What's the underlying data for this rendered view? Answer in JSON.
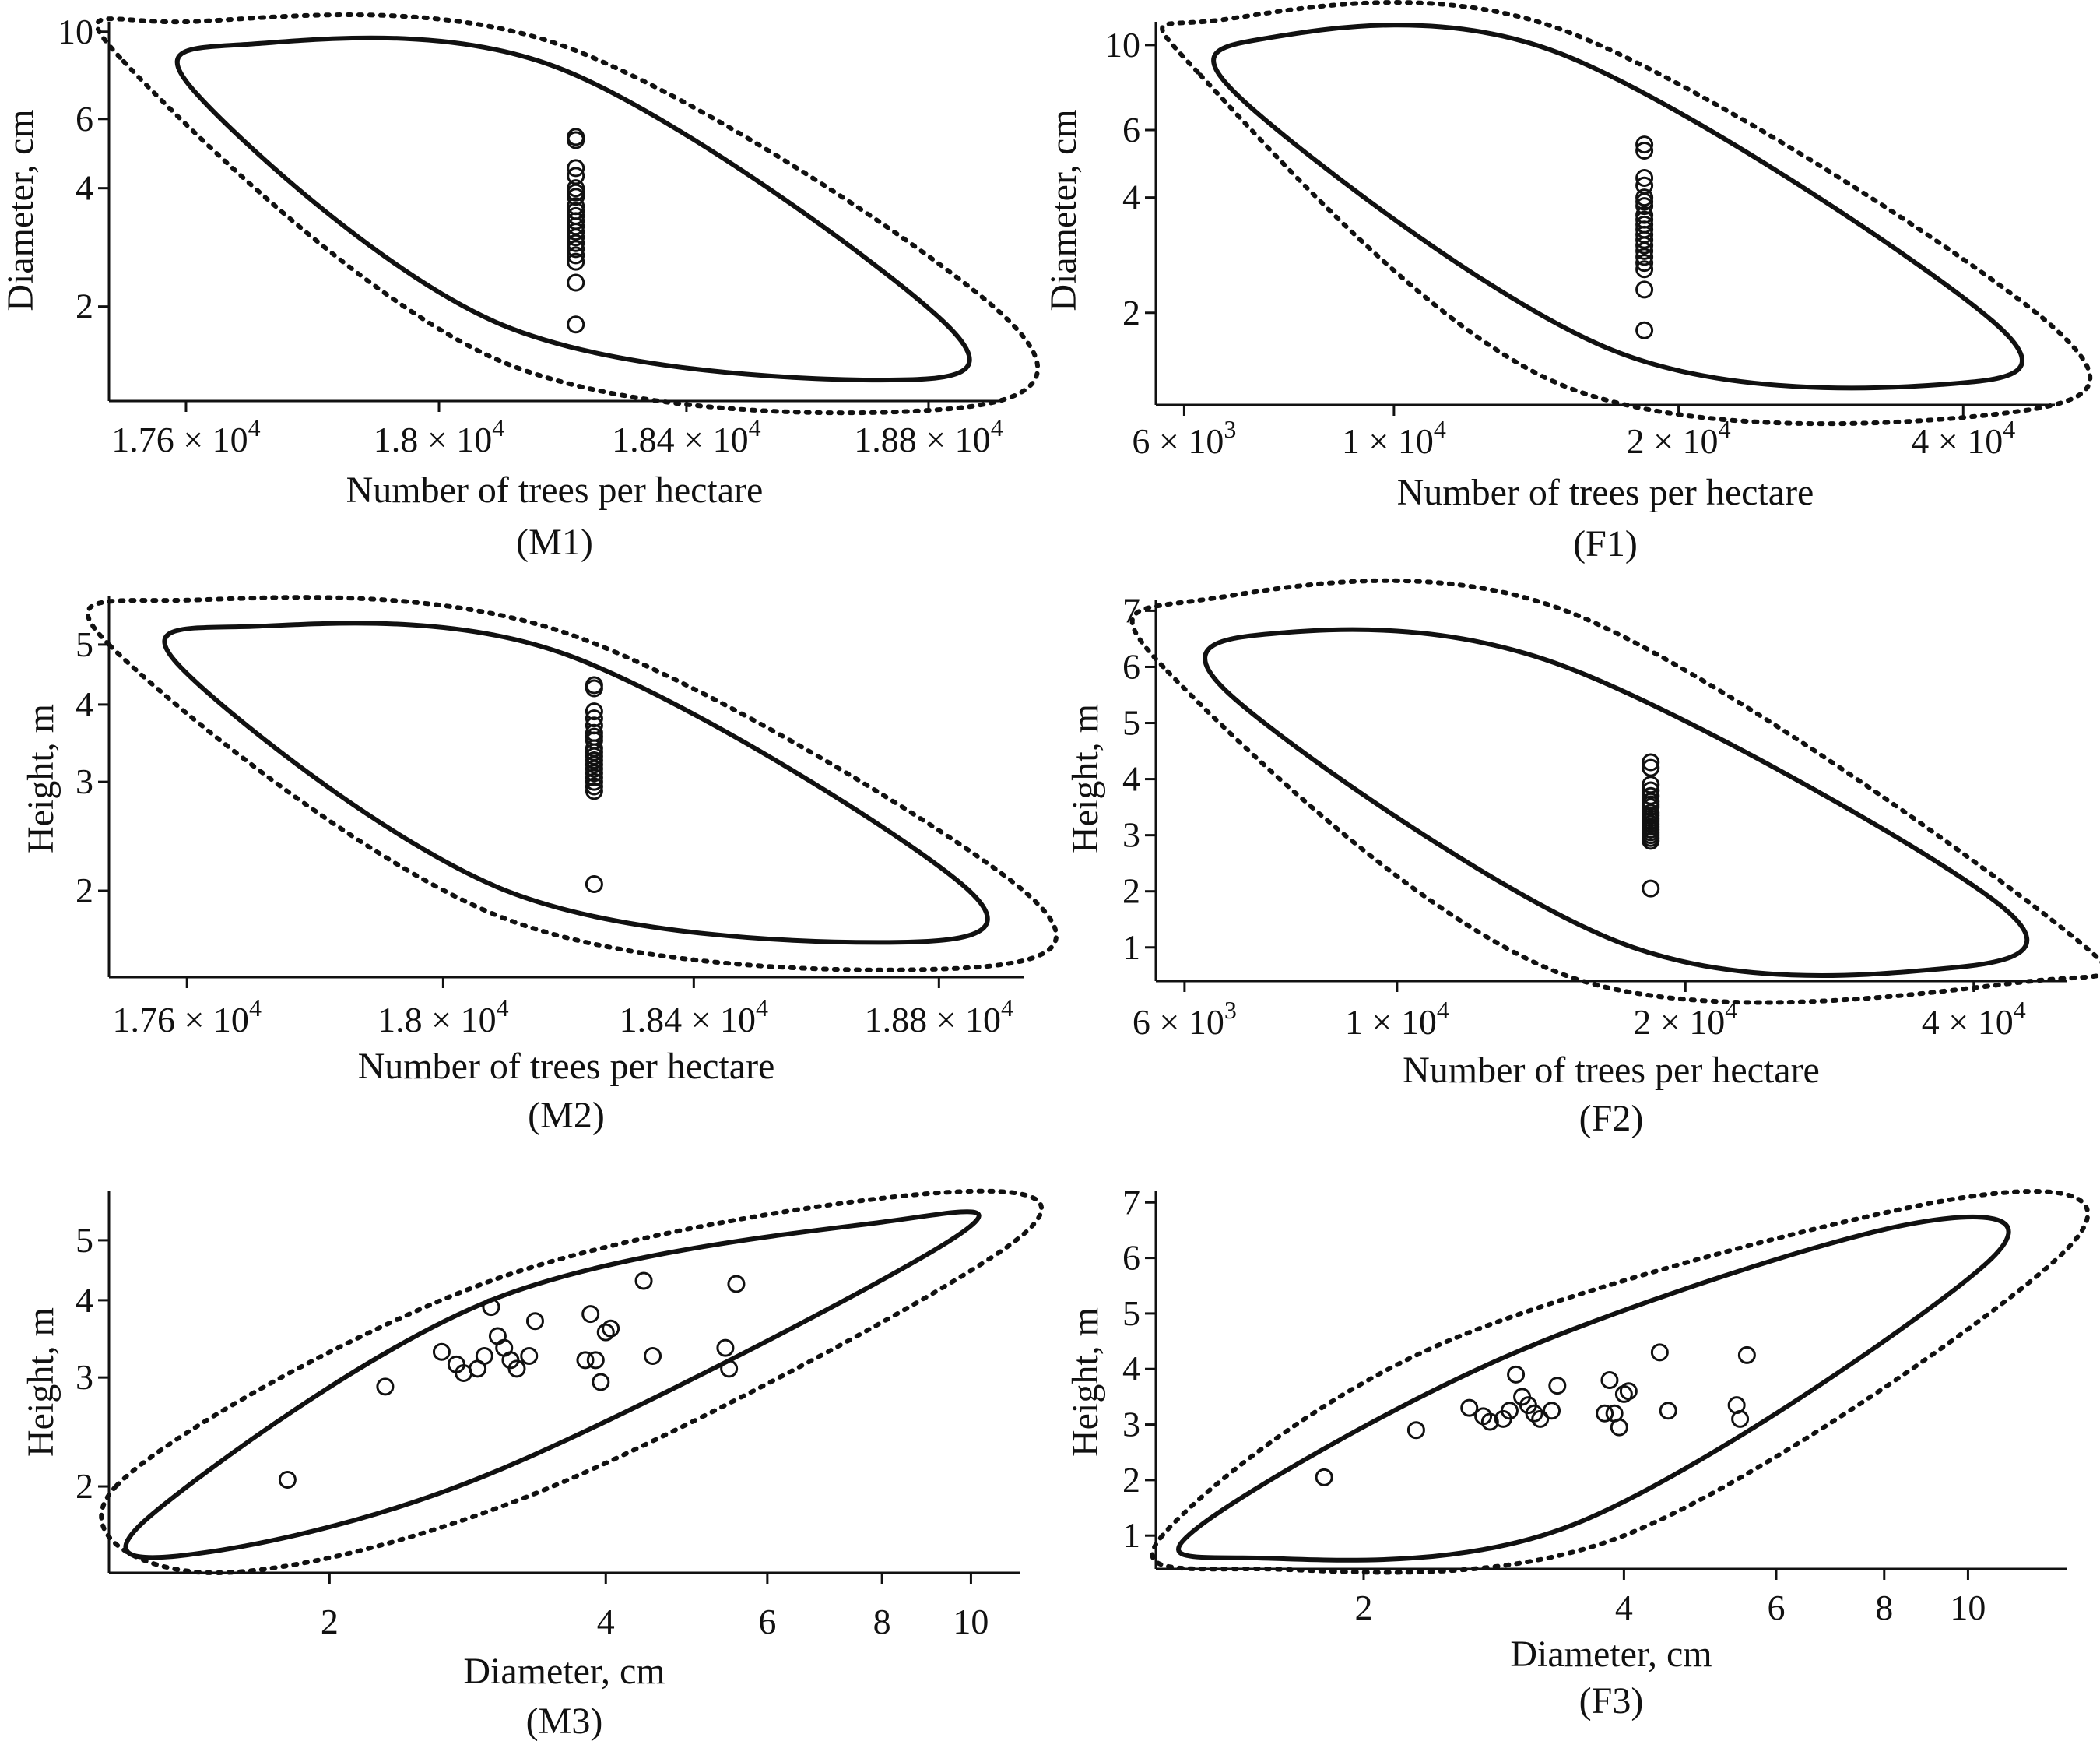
{
  "figure": {
    "style": {
      "ink": "#111111",
      "background": "#ffffff",
      "marker": "open-circle"
    }
  },
  "chart_data": [
    {
      "id": "M1",
      "panel_label": "(M1)",
      "type": "scatter",
      "x_scale": "log",
      "y_scale": "log",
      "title": "",
      "xlabel": "Number of trees per hectare",
      "ylabel": "Diameter, cm",
      "xlim": [
        17480,
        18920
      ],
      "ylim": [
        1.15,
        10.6
      ],
      "x_ticks": [
        {
          "v": 17600,
          "m": "1.76",
          "e": "4"
        },
        {
          "v": 18000,
          "m": "1.8",
          "e": "4"
        },
        {
          "v": 18400,
          "m": "1.84",
          "e": "4"
        },
        {
          "v": 18800,
          "m": "1.88",
          "e": "4"
        }
      ],
      "y_ticks": [
        {
          "v": 2,
          "t": "2"
        },
        {
          "v": 4,
          "t": "4"
        },
        {
          "v": 6,
          "t": "6"
        },
        {
          "v": 10,
          "t": "10"
        }
      ],
      "ellipse_inner": [
        {
          "x": 17615,
          "y": 7.0
        },
        {
          "x": 17700,
          "y": 9.3
        },
        {
          "x": 18200,
          "y": 8.0
        },
        {
          "x": 18830,
          "y": 1.8
        },
        {
          "x": 18720,
          "y": 1.3
        },
        {
          "x": 18100,
          "y": 1.8
        }
      ],
      "ellipse_outer": [
        {
          "x": 17497,
          "y": 8.6
        },
        {
          "x": 17600,
          "y": 10.6
        },
        {
          "x": 18200,
          "y": 9.2
        },
        {
          "x": 18925,
          "y": 1.9
        },
        {
          "x": 18840,
          "y": 1.1
        },
        {
          "x": 18100,
          "y": 1.45
        }
      ],
      "points": [
        {
          "x": 18220,
          "y": 5.4
        },
        {
          "x": 18220,
          "y": 5.3
        },
        {
          "x": 18220,
          "y": 4.5
        },
        {
          "x": 18220,
          "y": 4.3
        },
        {
          "x": 18220,
          "y": 4.0
        },
        {
          "x": 18220,
          "y": 3.9
        },
        {
          "x": 18220,
          "y": 3.8
        },
        {
          "x": 18220,
          "y": 3.6
        },
        {
          "x": 18220,
          "y": 3.5
        },
        {
          "x": 18220,
          "y": 3.4
        },
        {
          "x": 18220,
          "y": 3.3
        },
        {
          "x": 18220,
          "y": 3.2
        },
        {
          "x": 18220,
          "y": 3.1
        },
        {
          "x": 18220,
          "y": 3.0
        },
        {
          "x": 18220,
          "y": 2.9
        },
        {
          "x": 18220,
          "y": 2.8
        },
        {
          "x": 18220,
          "y": 2.7
        },
        {
          "x": 18220,
          "y": 2.6
        },
        {
          "x": 18220,
          "y": 2.3
        },
        {
          "x": 18220,
          "y": 1.8
        }
      ]
    },
    {
      "id": "F1",
      "panel_label": "(F1)",
      "type": "scatter",
      "x_scale": "log",
      "y_scale": "log",
      "title": "",
      "xlabel": "Number of trees per hectare",
      "ylabel": "Diameter, cm",
      "xlim": [
        5600,
        50000
      ],
      "ylim": [
        1.15,
        11.5
      ],
      "x_ticks": [
        {
          "v": 6000,
          "m": "6",
          "e": "3"
        },
        {
          "v": 10000,
          "m": "1",
          "e": "4"
        },
        {
          "v": 20000,
          "m": "2",
          "e": "4"
        },
        {
          "v": 40000,
          "m": "4",
          "e": "4"
        }
      ],
      "y_ticks": [
        {
          "v": 2,
          "t": "2"
        },
        {
          "v": 4,
          "t": "4"
        },
        {
          "v": 6,
          "t": "6"
        },
        {
          "v": 10,
          "t": "10"
        }
      ],
      "ellipse_inner": [
        {
          "x": 7000,
          "y": 7.0
        },
        {
          "x": 7300,
          "y": 10.4
        },
        {
          "x": 15000,
          "y": 9.5
        },
        {
          "x": 43000,
          "y": 1.9
        },
        {
          "x": 38000,
          "y": 1.3
        },
        {
          "x": 17000,
          "y": 1.6
        }
      ],
      "ellipse_outer": [
        {
          "x": 6200,
          "y": 8.5
        },
        {
          "x": 6500,
          "y": 11.6
        },
        {
          "x": 15000,
          "y": 11.0
        },
        {
          "x": 49000,
          "y": 1.9
        },
        {
          "x": 45000,
          "y": 1.1
        },
        {
          "x": 15000,
          "y": 1.3
        }
      ],
      "points": [
        {
          "x": 18400,
          "y": 5.5
        },
        {
          "x": 18400,
          "y": 5.3
        },
        {
          "x": 18400,
          "y": 4.5
        },
        {
          "x": 18400,
          "y": 4.3
        },
        {
          "x": 18400,
          "y": 4.0
        },
        {
          "x": 18400,
          "y": 3.9
        },
        {
          "x": 18400,
          "y": 3.8
        },
        {
          "x": 18400,
          "y": 3.6
        },
        {
          "x": 18400,
          "y": 3.5
        },
        {
          "x": 18400,
          "y": 3.4
        },
        {
          "x": 18400,
          "y": 3.3
        },
        {
          "x": 18400,
          "y": 3.2
        },
        {
          "x": 18400,
          "y": 3.1
        },
        {
          "x": 18400,
          "y": 3.0
        },
        {
          "x": 18400,
          "y": 2.9
        },
        {
          "x": 18400,
          "y": 2.8
        },
        {
          "x": 18400,
          "y": 2.7
        },
        {
          "x": 18400,
          "y": 2.6
        },
        {
          "x": 18400,
          "y": 2.3
        },
        {
          "x": 18400,
          "y": 1.8
        }
      ]
    },
    {
      "id": "M2",
      "panel_label": "(M2)",
      "type": "scatter",
      "x_scale": "log",
      "y_scale": "log",
      "title": "",
      "xlabel": "Number of trees per hectare",
      "ylabel": "Height, m",
      "xlim": [
        17480,
        18940
      ],
      "ylim": [
        1.45,
        6.0
      ],
      "x_ticks": [
        {
          "v": 17600,
          "m": "1.76",
          "e": "4"
        },
        {
          "v": 18000,
          "m": "1.8",
          "e": "4"
        },
        {
          "v": 18400,
          "m": "1.84",
          "e": "4"
        },
        {
          "v": 18800,
          "m": "1.88",
          "e": "4"
        }
      ],
      "y_ticks": [
        {
          "v": 2,
          "t": "2"
        },
        {
          "v": 3,
          "t": "3"
        },
        {
          "v": 4,
          "t": "4"
        },
        {
          "v": 5,
          "t": "5"
        }
      ],
      "ellipse_inner": [
        {
          "x": 17590,
          "y": 4.6
        },
        {
          "x": 17700,
          "y": 5.35
        },
        {
          "x": 18200,
          "y": 4.8
        },
        {
          "x": 18850,
          "y": 2.0
        },
        {
          "x": 18700,
          "y": 1.65
        },
        {
          "x": 18100,
          "y": 2.0
        }
      ],
      "ellipse_outer": [
        {
          "x": 17480,
          "y": 5.0
        },
        {
          "x": 17600,
          "y": 5.9
        },
        {
          "x": 18200,
          "y": 5.2
        },
        {
          "x": 18940,
          "y": 2.0
        },
        {
          "x": 18840,
          "y": 1.5
        },
        {
          "x": 18100,
          "y": 1.8
        }
      ],
      "points": [
        {
          "x": 18240,
          "y": 4.3
        },
        {
          "x": 18240,
          "y": 4.25
        },
        {
          "x": 18240,
          "y": 3.9
        },
        {
          "x": 18240,
          "y": 3.8
        },
        {
          "x": 18240,
          "y": 3.7
        },
        {
          "x": 18240,
          "y": 3.6
        },
        {
          "x": 18240,
          "y": 3.55
        },
        {
          "x": 18240,
          "y": 3.5
        },
        {
          "x": 18240,
          "y": 3.4
        },
        {
          "x": 18240,
          "y": 3.35
        },
        {
          "x": 18240,
          "y": 3.3
        },
        {
          "x": 18240,
          "y": 3.25
        },
        {
          "x": 18240,
          "y": 3.2
        },
        {
          "x": 18240,
          "y": 3.15
        },
        {
          "x": 18240,
          "y": 3.1
        },
        {
          "x": 18240,
          "y": 3.05
        },
        {
          "x": 18240,
          "y": 3.0
        },
        {
          "x": 18240,
          "y": 2.95
        },
        {
          "x": 18240,
          "y": 2.9
        },
        {
          "x": 18240,
          "y": 2.05
        }
      ]
    },
    {
      "id": "F2",
      "panel_label": "(F2)",
      "type": "scatter",
      "x_scale": "log",
      "y_scale": "linear",
      "title": "",
      "xlabel": "Number of trees per hectare",
      "ylabel": "Height, m",
      "xlim": [
        5600,
        50000
      ],
      "ylim": [
        0.4,
        7.2
      ],
      "x_ticks": [
        {
          "v": 6000,
          "m": "6",
          "e": "3"
        },
        {
          "v": 10000,
          "m": "1",
          "e": "4"
        },
        {
          "v": 20000,
          "m": "2",
          "e": "4"
        },
        {
          "v": 40000,
          "m": "4",
          "e": "4"
        }
      ],
      "y_ticks": [
        {
          "v": 1,
          "t": "1"
        },
        {
          "v": 2,
          "t": "2"
        },
        {
          "v": 3,
          "t": "3"
        },
        {
          "v": 4,
          "t": "4"
        },
        {
          "v": 5,
          "t": "5"
        },
        {
          "v": 6,
          "t": "6"
        },
        {
          "v": 7,
          "t": "7"
        }
      ],
      "ellipse_inner": [
        {
          "x": 6700,
          "y": 5.5
        },
        {
          "x": 7500,
          "y": 6.6
        },
        {
          "x": 15000,
          "y": 6.0
        },
        {
          "x": 43000,
          "y": 1.7
        },
        {
          "x": 36000,
          "y": 0.6
        },
        {
          "x": 17000,
          "y": 1.1
        }
      ],
      "ellipse_outer": [
        {
          "x": 5700,
          "y": 6.0
        },
        {
          "x": 6300,
          "y": 7.2
        },
        {
          "x": 15000,
          "y": 7.0
        },
        {
          "x": 49000,
          "y": 1.4
        },
        {
          "x": 46000,
          "y": 0.4
        },
        {
          "x": 15000,
          "y": 0.5
        }
      ],
      "points": [
        {
          "x": 18400,
          "y": 4.3
        },
        {
          "x": 18400,
          "y": 4.2
        },
        {
          "x": 18400,
          "y": 3.9
        },
        {
          "x": 18400,
          "y": 3.8
        },
        {
          "x": 18400,
          "y": 3.7
        },
        {
          "x": 18400,
          "y": 3.6
        },
        {
          "x": 18400,
          "y": 3.55
        },
        {
          "x": 18400,
          "y": 3.5
        },
        {
          "x": 18400,
          "y": 3.4
        },
        {
          "x": 18400,
          "y": 3.35
        },
        {
          "x": 18400,
          "y": 3.3
        },
        {
          "x": 18400,
          "y": 3.25
        },
        {
          "x": 18400,
          "y": 3.2
        },
        {
          "x": 18400,
          "y": 3.15
        },
        {
          "x": 18400,
          "y": 3.1
        },
        {
          "x": 18400,
          "y": 3.05
        },
        {
          "x": 18400,
          "y": 3.0
        },
        {
          "x": 18400,
          "y": 2.95
        },
        {
          "x": 18400,
          "y": 2.9
        },
        {
          "x": 18400,
          "y": 2.05
        }
      ]
    },
    {
      "id": "M3",
      "panel_label": "(M3)",
      "type": "scatter",
      "x_scale": "log",
      "y_scale": "log",
      "title": "",
      "xlabel": "Diameter, cm",
      "ylabel": "Height, m",
      "xlim": [
        1.15,
        11.3
      ],
      "ylim": [
        1.45,
        6.0
      ],
      "x_ticks": [
        {
          "v": 2,
          "t": "2"
        },
        {
          "v": 4,
          "t": "4"
        },
        {
          "v": 6,
          "t": "6"
        },
        {
          "v": 8,
          "t": "8"
        },
        {
          "v": 10,
          "t": "10"
        }
      ],
      "y_ticks": [
        {
          "v": 2,
          "t": "2"
        },
        {
          "v": 3,
          "t": "3"
        },
        {
          "v": 4,
          "t": "4"
        },
        {
          "v": 5,
          "t": "5"
        }
      ],
      "ellipse_inner": [
        {
          "x": 1.28,
          "y": 1.8
        },
        {
          "x": 1.4,
          "y": 1.55
        },
        {
          "x": 3.0,
          "y": 2.1
        },
        {
          "x": 9.5,
          "y": 5.0
        },
        {
          "x": 8.0,
          "y": 5.35
        },
        {
          "x": 3.0,
          "y": 4.0
        }
      ],
      "ellipse_outer": [
        {
          "x": 1.17,
          "y": 2.0
        },
        {
          "x": 1.5,
          "y": 1.45
        },
        {
          "x": 3.5,
          "y": 2.0
        },
        {
          "x": 11.2,
          "y": 5.0
        },
        {
          "x": 9.0,
          "y": 5.95
        },
        {
          "x": 3.0,
          "y": 4.3
        }
      ],
      "points": [
        {
          "x": 1.8,
          "y": 2.05
        },
        {
          "x": 2.3,
          "y": 2.9
        },
        {
          "x": 2.65,
          "y": 3.3
        },
        {
          "x": 2.75,
          "y": 3.15
        },
        {
          "x": 2.8,
          "y": 3.05
        },
        {
          "x": 2.9,
          "y": 3.1
        },
        {
          "x": 2.95,
          "y": 3.25
        },
        {
          "x": 3.0,
          "y": 3.9
        },
        {
          "x": 3.05,
          "y": 3.5
        },
        {
          "x": 3.1,
          "y": 3.35
        },
        {
          "x": 3.15,
          "y": 3.2
        },
        {
          "x": 3.2,
          "y": 3.1
        },
        {
          "x": 3.3,
          "y": 3.25
        },
        {
          "x": 3.35,
          "y": 3.7
        },
        {
          "x": 3.8,
          "y": 3.2
        },
        {
          "x": 3.85,
          "y": 3.8
        },
        {
          "x": 3.9,
          "y": 3.2
        },
        {
          "x": 3.95,
          "y": 2.95
        },
        {
          "x": 4.0,
          "y": 3.55
        },
        {
          "x": 4.05,
          "y": 3.6
        },
        {
          "x": 4.4,
          "y": 4.3
        },
        {
          "x": 4.5,
          "y": 3.25
        },
        {
          "x": 5.4,
          "y": 3.35
        },
        {
          "x": 5.45,
          "y": 3.1
        },
        {
          "x": 5.55,
          "y": 4.25
        }
      ]
    },
    {
      "id": "F3",
      "panel_label": "(F3)",
      "type": "scatter",
      "x_scale": "log",
      "y_scale": "linear",
      "title": "",
      "xlabel": "Diameter, cm",
      "ylabel": "Height, m",
      "xlim": [
        1.15,
        13.0
      ],
      "ylim": [
        0.4,
        7.2
      ],
      "x_ticks": [
        {
          "v": 2,
          "t": "2"
        },
        {
          "v": 4,
          "t": "4"
        },
        {
          "v": 6,
          "t": "6"
        },
        {
          "v": 8,
          "t": "8"
        },
        {
          "v": 10,
          "t": "10"
        }
      ],
      "y_ticks": [
        {
          "v": 1,
          "t": "1"
        },
        {
          "v": 2,
          "t": "2"
        },
        {
          "v": 3,
          "t": "3"
        },
        {
          "v": 4,
          "t": "4"
        },
        {
          "v": 5,
          "t": "5"
        },
        {
          "v": 6,
          "t": "6"
        },
        {
          "v": 7,
          "t": "7"
        }
      ],
      "ellipse_inner": [
        {
          "x": 1.3,
          "y": 1.2
        },
        {
          "x": 1.45,
          "y": 0.6
        },
        {
          "x": 3.5,
          "y": 1.2
        },
        {
          "x": 10.5,
          "y": 5.9
        },
        {
          "x": 8.5,
          "y": 6.6
        },
        {
          "x": 3.0,
          "y": 4.3
        }
      ],
      "ellipse_outer": [
        {
          "x": 1.17,
          "y": 1.0
        },
        {
          "x": 1.5,
          "y": 0.4
        },
        {
          "x": 4.0,
          "y": 1.0
        },
        {
          "x": 12.9,
          "y": 6.1
        },
        {
          "x": 10.0,
          "y": 7.1
        },
        {
          "x": 2.5,
          "y": 4.5
        }
      ],
      "points": [
        {
          "x": 1.8,
          "y": 2.05
        },
        {
          "x": 2.3,
          "y": 2.9
        },
        {
          "x": 2.65,
          "y": 3.3
        },
        {
          "x": 2.75,
          "y": 3.15
        },
        {
          "x": 2.8,
          "y": 3.05
        },
        {
          "x": 2.9,
          "y": 3.1
        },
        {
          "x": 2.95,
          "y": 3.25
        },
        {
          "x": 3.0,
          "y": 3.9
        },
        {
          "x": 3.05,
          "y": 3.5
        },
        {
          "x": 3.1,
          "y": 3.35
        },
        {
          "x": 3.15,
          "y": 3.2
        },
        {
          "x": 3.2,
          "y": 3.1
        },
        {
          "x": 3.3,
          "y": 3.25
        },
        {
          "x": 3.35,
          "y": 3.7
        },
        {
          "x": 3.8,
          "y": 3.2
        },
        {
          "x": 3.85,
          "y": 3.8
        },
        {
          "x": 3.9,
          "y": 3.2
        },
        {
          "x": 3.95,
          "y": 2.95
        },
        {
          "x": 4.0,
          "y": 3.55
        },
        {
          "x": 4.05,
          "y": 3.6
        },
        {
          "x": 4.4,
          "y": 4.3
        },
        {
          "x": 4.5,
          "y": 3.25
        },
        {
          "x": 5.4,
          "y": 3.35
        },
        {
          "x": 5.45,
          "y": 3.1
        },
        {
          "x": 5.55,
          "y": 4.25
        }
      ]
    }
  ]
}
